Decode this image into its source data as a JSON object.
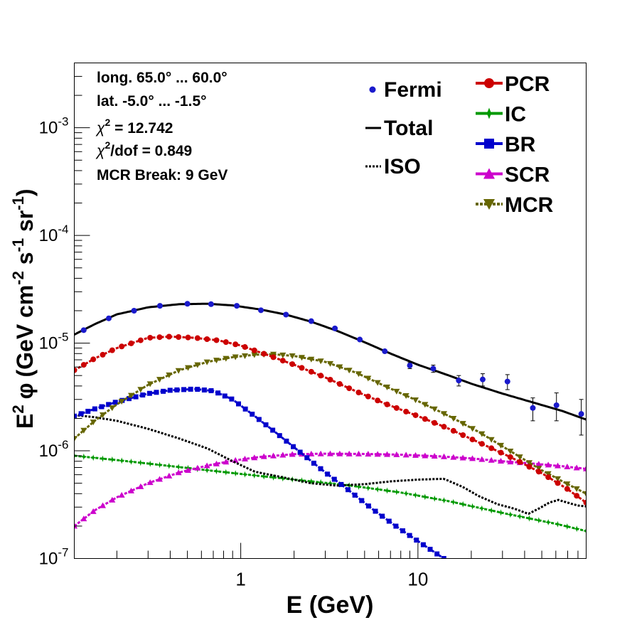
{
  "chart_data": {
    "type": "line",
    "scale": {
      "x": "log",
      "y": "log"
    },
    "xlim": [
      0.115,
      89
    ],
    "ylim": [
      1e-07,
      0.004
    ],
    "xlabel": "E (GeV)",
    "ylabel": {
      "main": "E",
      "exp": "2",
      "phi": "φ",
      "unit_pre": "(GeV cm",
      "unit_cm_exp": "-2",
      "unit_s": " s",
      "unit_s_exp": "-1",
      "unit_sr": " sr",
      "unit_sr_exp": "-1",
      "unit_post": ")"
    },
    "x_tick_labels": [
      {
        "value": 1,
        "label": "1"
      },
      {
        "value": 10,
        "label": "10"
      }
    ],
    "y_tick_labels": [
      {
        "value": 1e-07,
        "base": "10",
        "exp": "-7"
      },
      {
        "value": 1e-06,
        "base": "10",
        "exp": "-6"
      },
      {
        "value": 1e-05,
        "base": "10",
        "exp": "-5"
      },
      {
        "value": 0.0001,
        "base": "10",
        "exp": "-4"
      },
      {
        "value": 0.001,
        "base": "10",
        "exp": "-3"
      }
    ],
    "info": {
      "long": "long. 65.0° ... 60.0°",
      "lat": "lat. -5.0° ... -1.5°",
      "chi2_sym": "χ",
      "chi2_sup": "2",
      "chi2_rest": " = 12.742",
      "chi2dof_sym": "χ",
      "chi2dof_sup": "2",
      "chi2dof_rest": "/dof = 0.849",
      "mcr_break": "MCR Break:  9 GeV"
    },
    "legend_left": [
      {
        "name": "Fermi",
        "style": "dot",
        "color": "#1a1acc"
      },
      {
        "name": "Total",
        "style": "line",
        "color": "#000000"
      },
      {
        "name": "ISO",
        "style": "dotted",
        "color": "#000000"
      }
    ],
    "legend_right": [
      {
        "name": "PCR",
        "style": "circle",
        "color": "#cc0000"
      },
      {
        "name": "IC",
        "style": "star",
        "color": "#009900"
      },
      {
        "name": "BR",
        "style": "square",
        "color": "#0000cc"
      },
      {
        "name": "SCR",
        "style": "triangle-up",
        "color": "#cc00cc"
      },
      {
        "name": "MCR",
        "style": "triangle-down",
        "color": "#666600"
      }
    ],
    "series": [
      {
        "name": "Fermi",
        "kind": "points",
        "color": "#1a1acc",
        "x": [
          0.13,
          0.18,
          0.25,
          0.35,
          0.5,
          0.68,
          0.95,
          1.3,
          1.8,
          2.5,
          3.4,
          4.7,
          6.5,
          9.0,
          12.2,
          17.0,
          23.2,
          32.0,
          44.5,
          60.5,
          83.5
        ],
        "y": [
          1.32e-05,
          1.7e-05,
          2e-05,
          2.22e-05,
          2.32e-05,
          2.3e-05,
          2.22e-05,
          2.02e-05,
          1.84e-05,
          1.6e-05,
          1.37e-05,
          1.08e-05,
          8.4e-06,
          6.2e-06,
          5.8e-06,
          4.5e-06,
          4.6e-06,
          4.4e-06,
          2.5e-06,
          2.65e-06,
          2.2e-06
        ],
        "err_lo": [
          0,
          0,
          0,
          0,
          0,
          0,
          0,
          0,
          0,
          0,
          0,
          0,
          0,
          4e-07,
          4.5e-07,
          5e-07,
          6e-07,
          7e-07,
          6e-07,
          7.5e-07,
          8e-07
        ],
        "err_hi": [
          0,
          0,
          0,
          0,
          0,
          0,
          0,
          0,
          0,
          0,
          0,
          0,
          0,
          4e-07,
          4.5e-07,
          5e-07,
          6e-07,
          7e-07,
          6e-07,
          8e-07,
          8e-07
        ]
      },
      {
        "name": "Total",
        "kind": "line",
        "color": "#000000",
        "x": [
          0.115,
          0.15,
          0.2,
          0.3,
          0.45,
          0.65,
          0.9,
          1.3,
          1.8,
          2.5,
          3.5,
          5,
          7,
          10,
          15,
          20,
          30,
          45,
          65,
          89
        ],
        "y": [
          1.2e-05,
          1.5e-05,
          1.85e-05,
          2.15e-05,
          2.3e-05,
          2.32e-05,
          2.24e-05,
          2.05e-05,
          1.84e-05,
          1.58e-05,
          1.3e-05,
          1.02e-05,
          8e-06,
          6.3e-06,
          5e-06,
          4.2e-06,
          3.4e-06,
          2.8e-06,
          2.35e-06,
          1.95e-06
        ]
      },
      {
        "name": "PCR",
        "kind": "line-markers",
        "marker": "circle",
        "color": "#cc0000",
        "x": [
          0.115,
          0.15,
          0.2,
          0.3,
          0.4,
          0.55,
          0.75,
          1.0,
          1.4,
          2.0,
          3.0,
          4.5,
          6.5,
          10,
          15,
          22,
          33,
          50,
          70,
          89
        ],
        "y": [
          5.6e-06,
          7.2e-06,
          9e-06,
          1.12e-05,
          1.15e-05,
          1.12e-05,
          1.06e-05,
          9.5e-06,
          7.8e-06,
          6.3e-06,
          4.8e-06,
          3.55e-06,
          2.75e-06,
          2.1e-06,
          1.6e-06,
          1.2e-06,
          8.8e-07,
          6.2e-07,
          4.4e-07,
          3.3e-07
        ]
      },
      {
        "name": "MCR",
        "kind": "line-markers",
        "marker": "triangle-down",
        "color": "#666600",
        "x": [
          0.115,
          0.15,
          0.2,
          0.3,
          0.45,
          0.65,
          0.9,
          1.2,
          1.5,
          2.0,
          3.0,
          4.5,
          6.5,
          10,
          15,
          22,
          33,
          50,
          70,
          89
        ],
        "y": [
          1.3e-06,
          1.9e-06,
          2.7e-06,
          4.1e-06,
          5.6e-06,
          6.7e-06,
          7.4e-06,
          7.8e-06,
          7.9e-06,
          7.6e-06,
          6.7e-06,
          5.3e-06,
          4e-06,
          2.9e-06,
          2.1e-06,
          1.5e-06,
          1e-06,
          6.6e-07,
          4.9e-07,
          4e-07
        ]
      },
      {
        "name": "BR",
        "kind": "line-markers",
        "marker": "square",
        "color": "#0000cc",
        "x": [
          0.115,
          0.15,
          0.2,
          0.3,
          0.4,
          0.55,
          0.7,
          0.9,
          1.2,
          1.6,
          2.2,
          3.0,
          4.0,
          5.5,
          7.5,
          10,
          14
        ],
        "y": [
          2.1e-06,
          2.45e-06,
          2.85e-06,
          3.4e-06,
          3.65e-06,
          3.75e-06,
          3.6e-06,
          3e-06,
          2.1e-06,
          1.45e-06,
          9.5e-07,
          6.3e-07,
          4.4e-07,
          2.9e-07,
          2e-07,
          1.45e-07,
          1e-07
        ]
      },
      {
        "name": "SCR",
        "kind": "line-markers",
        "marker": "triangle-up",
        "color": "#cc00cc",
        "x": [
          0.115,
          0.15,
          0.2,
          0.3,
          0.45,
          0.65,
          0.9,
          1.3,
          2.0,
          3.0,
          5.0,
          8.0,
          13,
          20,
          30,
          45,
          65,
          89
        ],
        "y": [
          2e-07,
          2.8e-07,
          3.7e-07,
          5e-07,
          6.3e-07,
          7.3e-07,
          8.1e-07,
          8.8e-07,
          9.3e-07,
          9.4e-07,
          9.35e-07,
          9.2e-07,
          8.9e-07,
          8.5e-07,
          8e-07,
          7.6e-07,
          7.2e-07,
          6.8e-07
        ]
      },
      {
        "name": "IC",
        "kind": "line-markers",
        "marker": "star",
        "color": "#009900",
        "x": [
          0.115,
          0.2,
          0.35,
          0.6,
          1.0,
          2.0,
          4.0,
          8.0,
          15,
          30,
          60,
          89
        ],
        "y": [
          9e-07,
          8.2e-07,
          7.4e-07,
          6.7e-07,
          6.1e-07,
          5.4e-07,
          4.8e-07,
          4.1e-07,
          3.4e-07,
          2.65e-07,
          2.1e-07,
          1.8e-07
        ]
      },
      {
        "name": "ISO",
        "kind": "dotted",
        "color": "#000000",
        "x": [
          0.115,
          0.15,
          0.2,
          0.3,
          0.45,
          0.65,
          0.9,
          1.2,
          1.7,
          2.5,
          3.5,
          5.0,
          7.0,
          10,
          14,
          18,
          22,
          28,
          35,
          42,
          48,
          55,
          62,
          70,
          80,
          89
        ],
        "y": [
          2.15e-06,
          2.05e-06,
          1.9e-06,
          1.6e-06,
          1.3e-06,
          1.05e-06,
          8e-07,
          6.4e-07,
          5.7e-07,
          5e-07,
          4.75e-07,
          4.9e-07,
          5.2e-07,
          5.4e-07,
          5.5e-07,
          4.6e-07,
          3.8e-07,
          3.2e-07,
          2.9e-07,
          2.6e-07,
          2.9e-07,
          3.3e-07,
          3.5e-07,
          3.3e-07,
          3.1e-07,
          3.05e-07
        ]
      }
    ]
  }
}
